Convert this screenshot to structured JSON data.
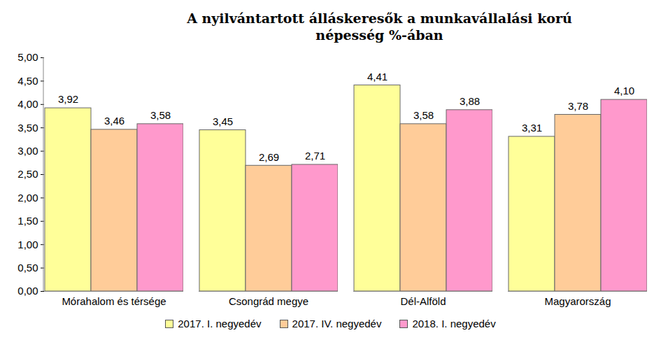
{
  "chart_data": {
    "type": "bar",
    "title": "A nyilvántartott álláskeresők a munkavállalási korú népesség %-ában",
    "categories": [
      "Mórahalom és térsége",
      "Csongrád megye",
      "Dél-Alföld",
      "Magyarország"
    ],
    "series": [
      {
        "name": "2017. I. negyedév",
        "color": "#FFFF99",
        "values": [
          3.92,
          3.45,
          4.41,
          3.31
        ],
        "value_labels": [
          "3,92",
          "3,45",
          "4,41",
          "3,31"
        ]
      },
      {
        "name": "2017. IV. negyedév",
        "color": "#FFCC99",
        "values": [
          3.46,
          2.69,
          3.58,
          3.78
        ],
        "value_labels": [
          "3,46",
          "2,69",
          "3,58",
          "3,78"
        ]
      },
      {
        "name": "2018. I. negyedév",
        "color": "#FF99CC",
        "values": [
          3.58,
          2.71,
          3.88,
          4.1
        ],
        "value_labels": [
          "3,58",
          "2,71",
          "3,88",
          "4,10"
        ]
      }
    ],
    "ylim": [
      0,
      5
    ],
    "yticks": [
      {
        "value": 0,
        "label": "0,00"
      },
      {
        "value": 0.5,
        "label": "0,50"
      },
      {
        "value": 1,
        "label": "1,00"
      },
      {
        "value": 1.5,
        "label": "1,50"
      },
      {
        "value": 2,
        "label": "2,00"
      },
      {
        "value": 2.5,
        "label": "2,50"
      },
      {
        "value": 3,
        "label": "3,00"
      },
      {
        "value": 3.5,
        "label": "3,50"
      },
      {
        "value": 4,
        "label": "4,00"
      },
      {
        "value": 4.5,
        "label": "4,50"
      },
      {
        "value": 5,
        "label": "5,00"
      }
    ],
    "grid": false,
    "legend": "bottom",
    "data_labels": true
  }
}
